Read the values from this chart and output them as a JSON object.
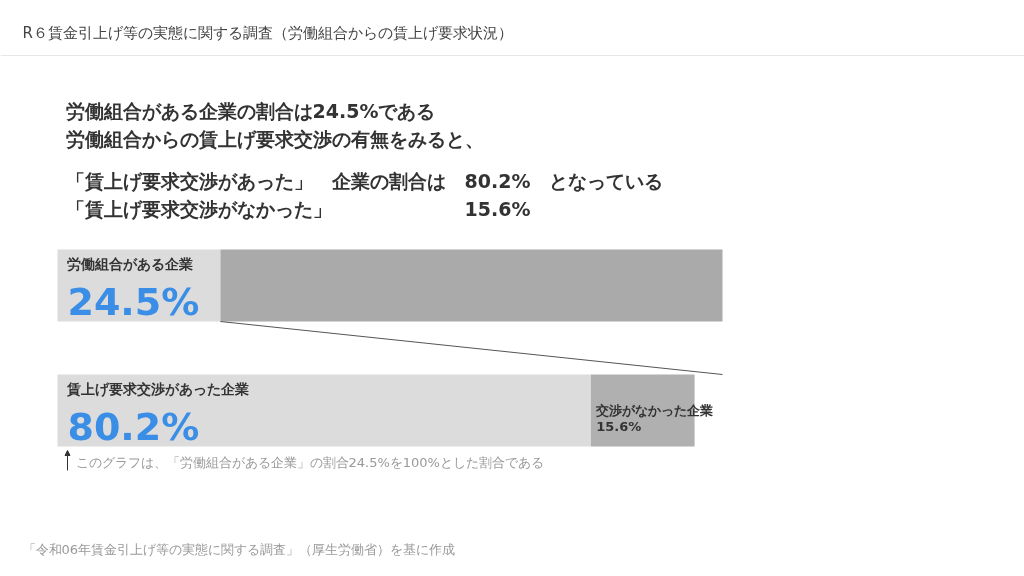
{
  "chart_data": {
    "type": "bar",
    "orientation": "horizontal",
    "stacked": true,
    "title": "R６賃金引上げ等の実態に関する調査（労働組合からの賃上げ要求状況）",
    "subtitle": "労働組合がある企業の割合は24.5%である",
    "categories": [
      null,
      null
    ],
    "xlim": [
      0,
      100
    ],
    "tick_labels": false,
    "grid": false,
    "series": [
      {
        "colors": [
          "#dcdcdc",
          "#dcdcdc"
        ],
        "values": [
          24.5,
          80.2
        ],
        "value_labels": [
          "労働組合がある企業\n24.5%",
          "賃上げ要求交渉があった企業\n80.2%"
        ]
      },
      {
        "colors": [
          "#aaaaaa",
          "#b0b0b0"
        ],
        "values": [
          75.5,
          15.6
        ],
        "value_labels": [
          null,
          "交渉がなかった企業\n15.6%"
        ]
      }
    ],
    "annotations": [
      "労働組合からの賃上げ要求交渉の有無をみると、",
      "「賃上げ要求交渉があった」　企業の割合は　80.2%　となっている",
      "「賃上げ要求交渉がなかった」　　　　　　　15.6%",
      "このグラフは、「労働組合がある企業」の割合24.5%を100%とした割合である",
      "「令和06年賃金引上げ等の実態に関する調査」（厚生労働省）を基に作成"
    ]
  }
}
